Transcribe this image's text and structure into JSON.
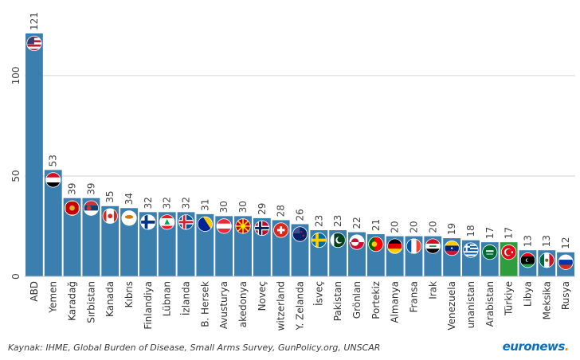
{
  "chart_data": {
    "type": "bar",
    "title": "",
    "xlabel": "",
    "ylabel": "",
    "ylim": [
      0,
      121
    ],
    "yticks": [
      "0",
      "50",
      "100"
    ],
    "bar_color": "#3a7fad",
    "highlight_color": "#2f9d3e",
    "categories": [
      "ABD",
      "Yemen",
      "Karadağ",
      "Sırbistan",
      "Kanada",
      "Kıbrıs",
      "Finlandiya",
      "Lübnan",
      "İzlanda",
      "B. Hersek",
      "Avusturya",
      "akedonya",
      "Noveç",
      "witzerland",
      "Y. Zelanda",
      "İsveç",
      "Pakistan",
      "Grönlan",
      "Portekiz",
      "Almanya",
      "Fransa",
      "Irak",
      "Venezuela",
      "unanistan",
      "Arabistan",
      "Türkiye",
      "Libya",
      "Meksika",
      "Rusya"
    ],
    "values": [
      121,
      53,
      39,
      39,
      35,
      34,
      32,
      32,
      32,
      31,
      30,
      30,
      29,
      28,
      26,
      23,
      23,
      22,
      21,
      20,
      20,
      20,
      19,
      18,
      17,
      17,
      13,
      13,
      12
    ],
    "value_labels": [
      "121",
      "53",
      "39",
      "39",
      "35",
      "34",
      "32",
      "32",
      "32",
      "31",
      "30",
      "30",
      "29",
      "28",
      "26",
      "23",
      "23",
      "22",
      "21",
      "20",
      "20",
      "20",
      "19",
      "18",
      "17",
      "17",
      "13",
      "13",
      "12"
    ],
    "highlighted": [
      "Türkiye"
    ],
    "flags": [
      "us",
      "ye",
      "me",
      "rs",
      "ca",
      "cy",
      "fi",
      "lb",
      "is",
      "ba",
      "at",
      "mk",
      "no",
      "ch",
      "nz",
      "se",
      "pk",
      "gl",
      "pt",
      "de",
      "fr",
      "iq",
      "ve",
      "gr",
      "sa",
      "tr",
      "ly",
      "mx",
      "ru"
    ]
  },
  "footer": {
    "source": "Kaynak: IHME, Global Burden of Disease, Small Arms Survey, GunPolicy.org, UNSCAR",
    "brand_main": "euronews",
    "brand_dot": "."
  }
}
